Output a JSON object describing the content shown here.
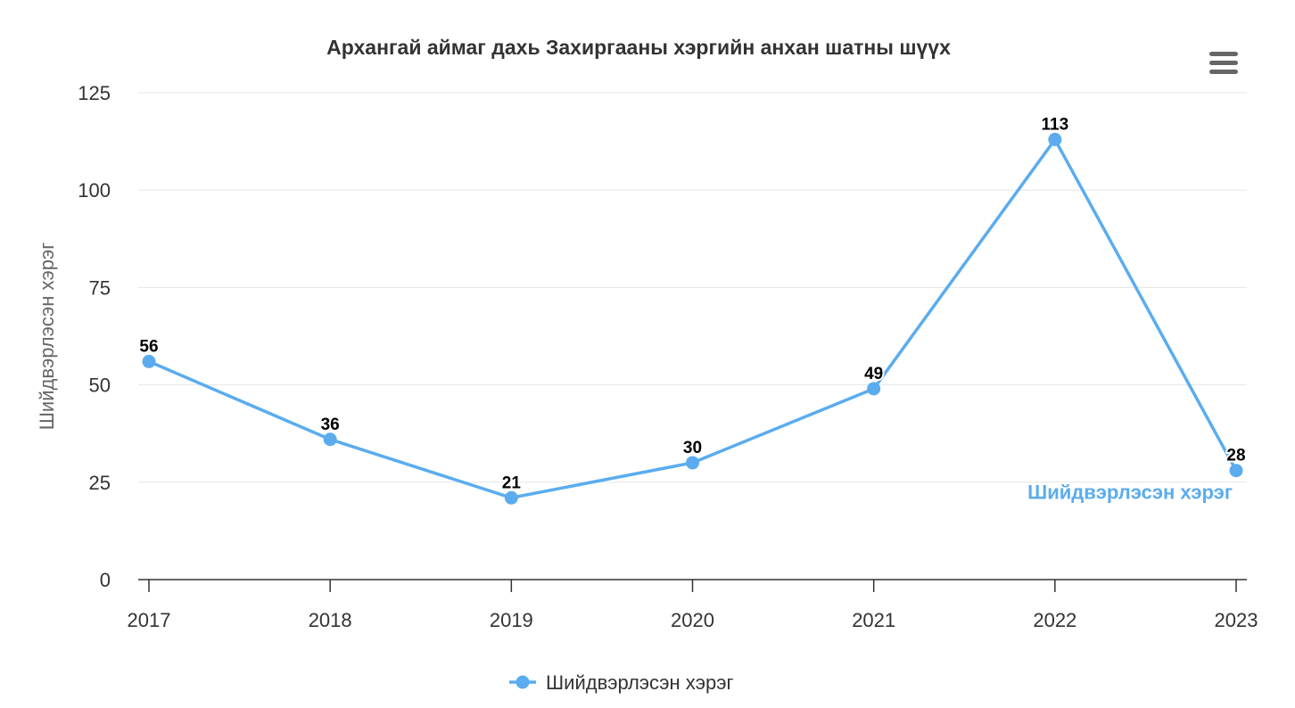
{
  "chart_data": {
    "type": "line",
    "title": "Архангай аймаг дахь Захиргааны хэргийн анхан шатны шүүх",
    "xlabel": "",
    "ylabel": "Шийдвэрлэсэн хэрэг",
    "categories": [
      "2017",
      "2018",
      "2019",
      "2020",
      "2021",
      "2022",
      "2023"
    ],
    "series": [
      {
        "name": "Шийдвэрлэсэн хэрэг",
        "values": [
          56,
          36,
          21,
          30,
          49,
          113,
          28
        ],
        "color": "#5aacee"
      }
    ],
    "ylim": [
      0,
      125
    ],
    "yticks": [
      0,
      25,
      50,
      75,
      100,
      125
    ],
    "grid": true,
    "legend": "bottom-center",
    "data_labels": true,
    "series_end_label": "Шийдвэрлэсэн хэрэг"
  },
  "menu": {
    "icon": "hamburger-menu-icon"
  }
}
